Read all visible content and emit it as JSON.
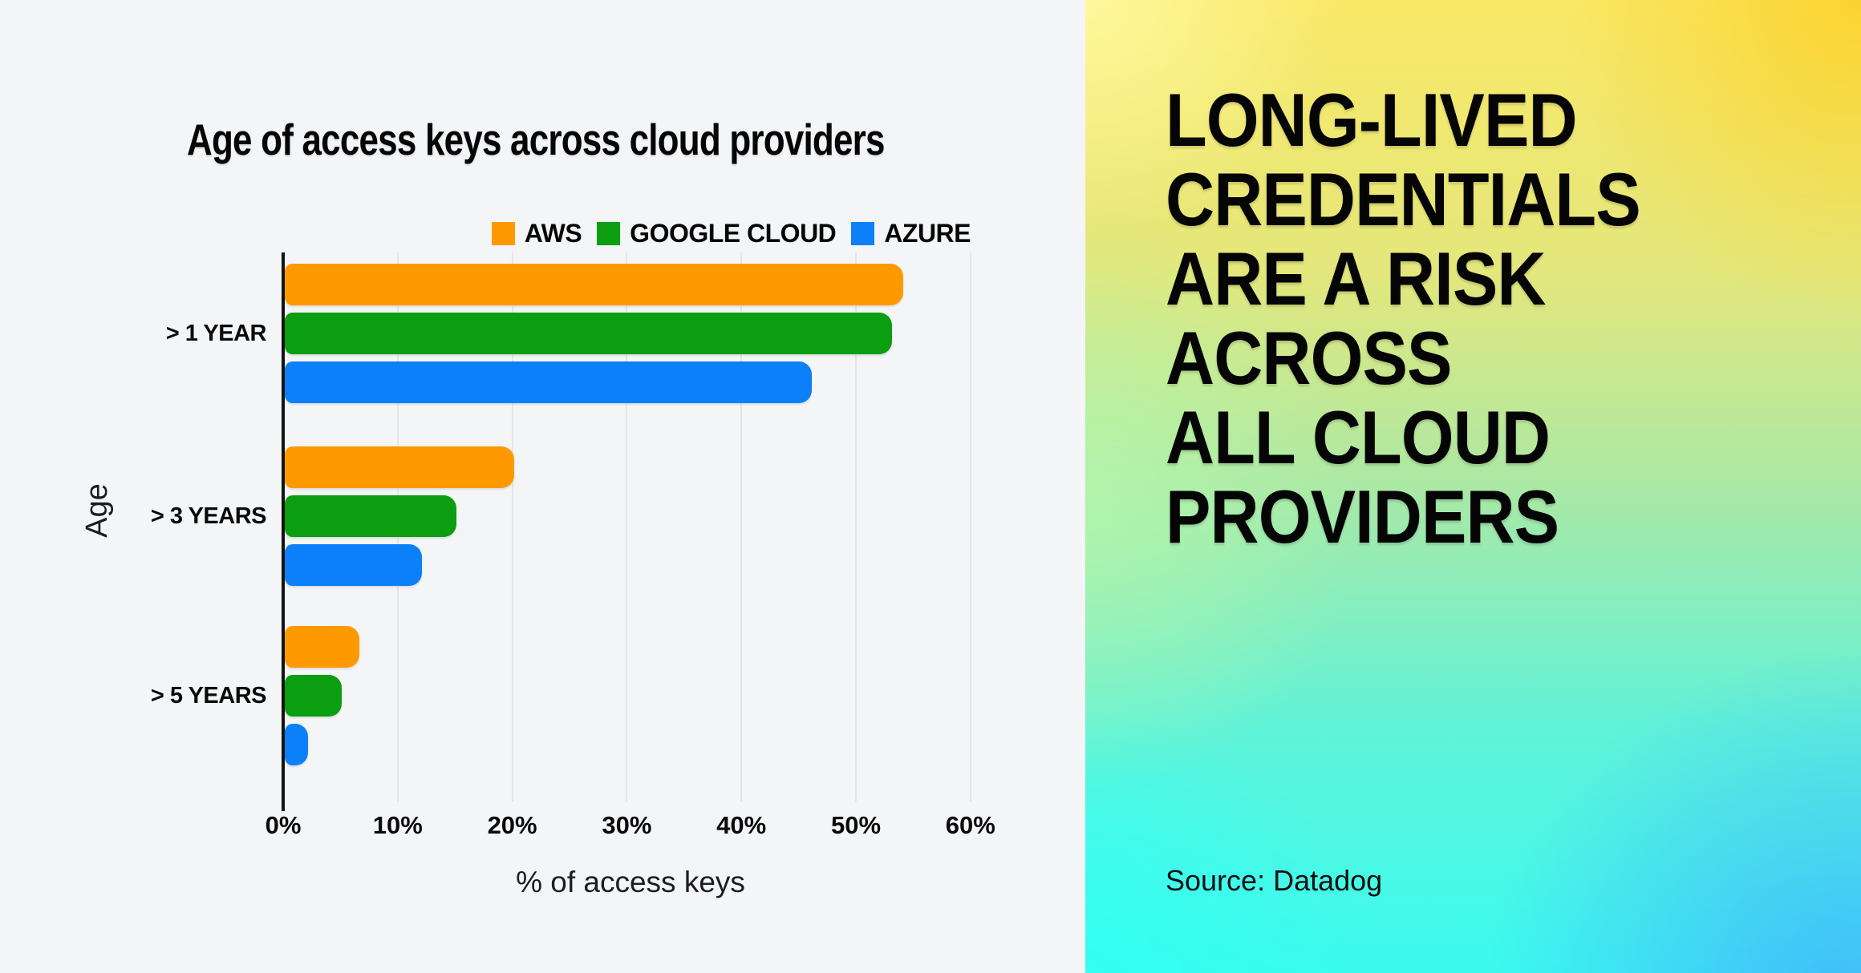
{
  "chart_data": {
    "type": "bar",
    "orientation": "horizontal",
    "title": "Age of access keys across cloud providers",
    "xlabel": "% of access keys",
    "ylabel": "Age",
    "unit": "%",
    "categories": [
      "> 1 YEAR",
      "> 3 YEARS",
      "> 5 YEARS"
    ],
    "series": [
      {
        "name": "AWS",
        "color": "#ff9900",
        "values": [
          54,
          20,
          6.5
        ]
      },
      {
        "name": "GOOGLE CLOUD",
        "color": "#0a9e10",
        "values": [
          53,
          15,
          5
        ]
      },
      {
        "name": "AZURE",
        "color": "#0b80f9",
        "values": [
          46,
          12,
          2
        ]
      }
    ],
    "x_tick_values": [
      0,
      10,
      20,
      30,
      40,
      50,
      60
    ],
    "x_tick_labels": [
      "0%",
      "10%",
      "20%",
      "30%",
      "40%",
      "50%",
      "60%"
    ],
    "xlim": [
      0,
      62
    ],
    "grid": "vertical-gridlines-on",
    "legend_position": "top-right"
  },
  "panel": {
    "headline_lines": [
      "LONG-LIVED",
      "CREDENTIALS",
      "ARE A RISK",
      "ACROSS",
      "ALL CLOUD",
      "PROVIDERS"
    ],
    "source": "Source: Datadog",
    "gradient_colors": {
      "top_left": "#fdf68c",
      "top_right": "#fcd93c",
      "middle_left": "#b2f5ad",
      "bottom_left": "#35fff2",
      "bottom_right": "#44bdfa"
    }
  },
  "colors": {
    "chart_background": "#f4f5f7",
    "gridline": "#e4e5e9",
    "axis": "#141414",
    "text": "#0a0a0a"
  }
}
